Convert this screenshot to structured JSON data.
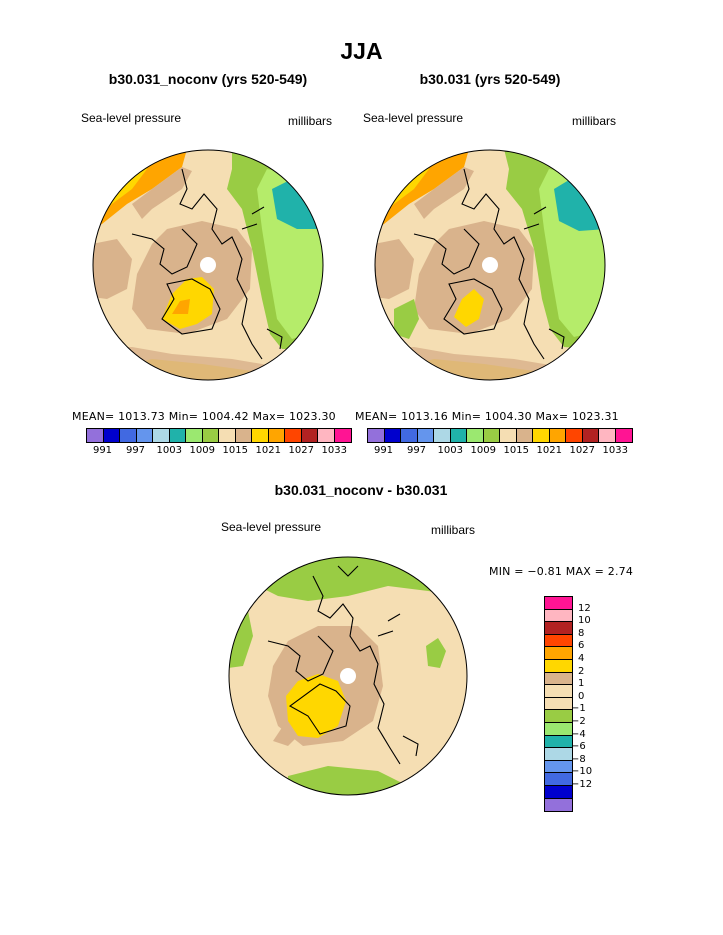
{
  "header": {
    "title": "JJA"
  },
  "panels": [
    {
      "title": "b30.031_noconv (yrs 520-549)",
      "var_label": "Sea-level pressure",
      "units": "millibars",
      "stats": "MEAN= 1013.73   Min= 1004.42   Max= 1023.30"
    },
    {
      "title": "b30.031 (yrs 520-549)",
      "var_label": "Sea-level pressure",
      "units": "millibars",
      "stats": "MEAN= 1013.16   Min= 1004.30   Max= 1023.31"
    },
    {
      "title": "b30.031_noconv - b30.031",
      "var_label": "Sea-level pressure",
      "units": "millibars",
      "stats": "MIN =   −0.81  MAX =    2.74"
    }
  ],
  "colorbar_abs": {
    "colors": [
      "#9370db",
      "#0000cd",
      "#4169e1",
      "#6495ed",
      "#add8e6",
      "#20b2aa",
      "#9be870",
      "#99cc44",
      "#f5deb3",
      "#d9b38c",
      "#ffd700",
      "#ffa500",
      "#ff4500",
      "#b22222",
      "#ffb6c1",
      "#ff1493"
    ],
    "labels": [
      "991",
      "997",
      "1003",
      "1009",
      "1015",
      "1021",
      "1027",
      "1033"
    ]
  },
  "colorbar_diff": {
    "colors": [
      "#ff1493",
      "#ffb6c1",
      "#b22222",
      "#ff4500",
      "#ffa500",
      "#ffd700",
      "#d9b38c",
      "#f5deb3",
      "#f5deb3",
      "#99cc44",
      "#9be870",
      "#20b2aa",
      "#add8e6",
      "#6495ed",
      "#4169e1",
      "#0000cd",
      "#9370db"
    ],
    "labels": [
      "12",
      "10",
      "8",
      "6",
      "4",
      "2",
      "1",
      "0",
      "−1",
      "−2",
      "−4",
      "−6",
      "−8",
      "−10",
      "−12"
    ]
  },
  "map_colors": {
    "background": "#f5deb3",
    "tan": "#d9b38c",
    "yellow": "#ffd700",
    "orange": "#ffa500",
    "darkorange": "#ff8c00",
    "green": "#99cc44",
    "lightgreen": "#b5ec6a",
    "teal": "#20b2aa"
  }
}
